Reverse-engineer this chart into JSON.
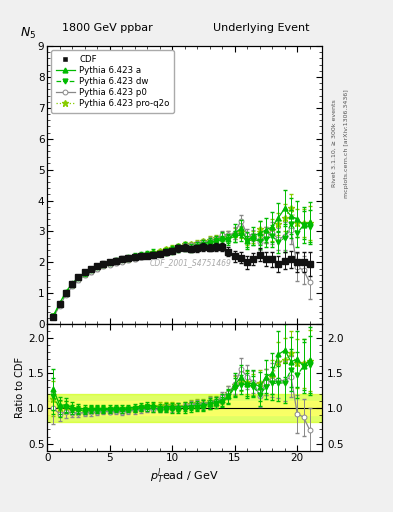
{
  "title_left": "1800 GeV ppbar",
  "title_right": "Underlying Event",
  "watermark": "CDF_2001_S4751469",
  "right_label1": "Rivet 3.1.10, ≥ 300k events",
  "right_label2": "mcplots.cern.ch [arXiv:1306.3436]",
  "cdf_x": [
    0.5,
    1.0,
    1.5,
    2.0,
    2.5,
    3.0,
    3.5,
    4.0,
    4.5,
    5.0,
    5.5,
    6.0,
    6.5,
    7.0,
    7.5,
    8.0,
    8.5,
    9.0,
    9.5,
    10.0,
    10.5,
    11.0,
    11.5,
    12.0,
    12.5,
    13.0,
    13.5,
    14.0,
    14.5,
    15.0,
    15.5,
    16.0,
    16.5,
    17.0,
    17.5,
    18.0,
    18.5,
    19.0,
    19.5,
    20.0,
    20.5,
    21.0
  ],
  "cdf_y": [
    0.22,
    0.65,
    1.0,
    1.3,
    1.52,
    1.68,
    1.78,
    1.88,
    1.96,
    2.02,
    2.06,
    2.12,
    2.15,
    2.18,
    2.2,
    2.22,
    2.25,
    2.28,
    2.32,
    2.38,
    2.45,
    2.48,
    2.42,
    2.45,
    2.5,
    2.48,
    2.5,
    2.5,
    2.35,
    2.2,
    2.15,
    2.0,
    2.1,
    2.25,
    2.1,
    2.1,
    1.95,
    2.05,
    2.1,
    2.0,
    2.0,
    1.95
  ],
  "cdf_yerr": [
    0.04,
    0.06,
    0.07,
    0.07,
    0.07,
    0.07,
    0.07,
    0.07,
    0.07,
    0.07,
    0.07,
    0.07,
    0.07,
    0.08,
    0.08,
    0.08,
    0.08,
    0.08,
    0.09,
    0.09,
    0.1,
    0.1,
    0.1,
    0.1,
    0.12,
    0.12,
    0.12,
    0.12,
    0.15,
    0.18,
    0.18,
    0.2,
    0.2,
    0.22,
    0.22,
    0.25,
    0.25,
    0.28,
    0.28,
    0.32,
    0.32,
    0.38
  ],
  "py_a_x": [
    0.5,
    1.0,
    1.5,
    2.0,
    2.5,
    3.0,
    3.5,
    4.0,
    4.5,
    5.0,
    5.5,
    6.0,
    6.5,
    7.0,
    7.5,
    8.0,
    8.5,
    9.0,
    9.5,
    10.0,
    10.5,
    11.0,
    11.5,
    12.0,
    12.5,
    13.0,
    13.5,
    14.0,
    14.5,
    15.0,
    15.5,
    16.0,
    16.5,
    17.0,
    17.5,
    18.0,
    18.5,
    19.0,
    19.5,
    20.0,
    20.5,
    21.0
  ],
  "py_a_y": [
    0.28,
    0.68,
    1.05,
    1.32,
    1.52,
    1.67,
    1.78,
    1.88,
    1.96,
    2.02,
    2.07,
    2.12,
    2.17,
    2.22,
    2.27,
    2.3,
    2.35,
    2.3,
    2.38,
    2.45,
    2.5,
    2.55,
    2.5,
    2.55,
    2.62,
    2.65,
    2.7,
    2.8,
    2.75,
    2.95,
    3.1,
    2.7,
    2.85,
    2.95,
    3.05,
    3.15,
    3.45,
    3.75,
    3.5,
    3.4,
    3.2,
    3.3
  ],
  "py_a_yerr": [
    0.04,
    0.05,
    0.06,
    0.06,
    0.06,
    0.06,
    0.06,
    0.06,
    0.06,
    0.06,
    0.06,
    0.06,
    0.06,
    0.07,
    0.07,
    0.07,
    0.07,
    0.08,
    0.09,
    0.09,
    0.1,
    0.1,
    0.1,
    0.11,
    0.12,
    0.14,
    0.14,
    0.18,
    0.18,
    0.28,
    0.28,
    0.28,
    0.28,
    0.38,
    0.38,
    0.48,
    0.48,
    0.58,
    0.58,
    0.58,
    0.58,
    0.65
  ],
  "py_dw_x": [
    0.5,
    1.0,
    1.5,
    2.0,
    2.5,
    3.0,
    3.5,
    4.0,
    4.5,
    5.0,
    5.5,
    6.0,
    6.5,
    7.0,
    7.5,
    8.0,
    8.5,
    9.0,
    9.5,
    10.0,
    10.5,
    11.0,
    11.5,
    12.0,
    12.5,
    13.0,
    13.5,
    14.0,
    14.5,
    15.0,
    15.5,
    16.0,
    16.5,
    17.0,
    17.5,
    18.0,
    18.5,
    19.0,
    19.5,
    20.0,
    20.5,
    21.0
  ],
  "py_dw_y": [
    0.26,
    0.65,
    1.02,
    1.28,
    1.48,
    1.63,
    1.75,
    1.85,
    1.93,
    1.98,
    2.03,
    2.08,
    2.12,
    2.17,
    2.22,
    2.25,
    2.25,
    2.25,
    2.3,
    2.35,
    2.4,
    2.45,
    2.42,
    2.5,
    2.55,
    2.62,
    2.68,
    2.72,
    2.75,
    2.85,
    2.88,
    2.68,
    2.75,
    2.68,
    2.75,
    2.85,
    2.65,
    2.8,
    3.25,
    2.95,
    3.2,
    3.15
  ],
  "py_dw_yerr": [
    0.03,
    0.05,
    0.05,
    0.05,
    0.05,
    0.05,
    0.05,
    0.05,
    0.05,
    0.05,
    0.05,
    0.05,
    0.05,
    0.06,
    0.06,
    0.06,
    0.06,
    0.06,
    0.07,
    0.07,
    0.07,
    0.07,
    0.07,
    0.09,
    0.09,
    0.11,
    0.11,
    0.13,
    0.13,
    0.18,
    0.18,
    0.18,
    0.18,
    0.25,
    0.25,
    0.35,
    0.35,
    0.45,
    0.45,
    0.45,
    0.45,
    0.55
  ],
  "py_p0_x": [
    0.5,
    1.0,
    1.5,
    2.0,
    2.5,
    3.0,
    3.5,
    4.0,
    4.5,
    5.0,
    5.5,
    6.0,
    6.5,
    7.0,
    7.5,
    8.0,
    8.5,
    9.0,
    9.5,
    10.0,
    10.5,
    11.0,
    11.5,
    12.0,
    12.5,
    13.0,
    13.5,
    14.0,
    14.5,
    15.0,
    15.5,
    16.0,
    16.5,
    17.0,
    17.5,
    18.0,
    18.5,
    19.0,
    19.5,
    20.0,
    20.5,
    21.0
  ],
  "py_p0_y": [
    0.22,
    0.6,
    0.95,
    1.22,
    1.42,
    1.58,
    1.68,
    1.78,
    1.88,
    1.93,
    1.97,
    2.02,
    2.07,
    2.12,
    2.17,
    2.2,
    2.22,
    2.27,
    2.32,
    2.38,
    2.5,
    2.55,
    2.55,
    2.6,
    2.65,
    2.7,
    2.75,
    2.9,
    2.88,
    2.95,
    3.35,
    2.9,
    2.88,
    2.65,
    2.88,
    2.95,
    2.75,
    2.85,
    3.05,
    1.85,
    1.75,
    1.35
  ],
  "py_p0_yerr": [
    0.03,
    0.04,
    0.05,
    0.05,
    0.05,
    0.05,
    0.05,
    0.05,
    0.05,
    0.05,
    0.05,
    0.05,
    0.05,
    0.06,
    0.06,
    0.06,
    0.06,
    0.06,
    0.07,
    0.07,
    0.07,
    0.07,
    0.07,
    0.09,
    0.09,
    0.11,
    0.11,
    0.13,
    0.13,
    0.18,
    0.18,
    0.18,
    0.18,
    0.25,
    0.25,
    0.35,
    0.35,
    0.45,
    0.45,
    0.45,
    0.45,
    0.55
  ],
  "py_proq2o_x": [
    0.5,
    1.0,
    1.5,
    2.0,
    2.5,
    3.0,
    3.5,
    4.0,
    4.5,
    5.0,
    5.5,
    6.0,
    6.5,
    7.0,
    7.5,
    8.0,
    8.5,
    9.0,
    9.5,
    10.0,
    10.5,
    11.0,
    11.5,
    12.0,
    12.5,
    13.0,
    13.5,
    14.0,
    14.5,
    15.0,
    15.5,
    16.0,
    16.5,
    17.0,
    17.5,
    18.0,
    18.5,
    19.0,
    19.5,
    20.0,
    20.5,
    21.0
  ],
  "py_proq2o_y": [
    0.25,
    0.65,
    1.02,
    1.28,
    1.48,
    1.63,
    1.75,
    1.85,
    1.93,
    1.98,
    2.03,
    2.08,
    2.12,
    2.17,
    2.22,
    2.27,
    2.32,
    2.37,
    2.42,
    2.48,
    2.53,
    2.58,
    2.58,
    2.63,
    2.68,
    2.73,
    2.78,
    2.83,
    2.88,
    2.93,
    2.98,
    2.75,
    2.82,
    3.08,
    2.88,
    3.05,
    3.25,
    3.45,
    3.75,
    3.28,
    3.28,
    3.28
  ],
  "py_proq2o_yerr": [
    0.03,
    0.04,
    0.05,
    0.05,
    0.05,
    0.05,
    0.05,
    0.05,
    0.05,
    0.05,
    0.05,
    0.05,
    0.05,
    0.06,
    0.06,
    0.06,
    0.06,
    0.06,
    0.07,
    0.07,
    0.07,
    0.07,
    0.07,
    0.09,
    0.09,
    0.11,
    0.11,
    0.13,
    0.13,
    0.18,
    0.18,
    0.18,
    0.18,
    0.25,
    0.25,
    0.35,
    0.35,
    0.45,
    0.45,
    0.45,
    0.45,
    0.55
  ],
  "color_cdf": "#111111",
  "color_py_a": "#00bb00",
  "color_py_dw": "#00bb00",
  "color_py_p0": "#888888",
  "color_py_proq2o": "#88cc00",
  "ylim_main": [
    0,
    9
  ],
  "ylim_ratio": [
    0.4,
    2.2
  ],
  "xlim": [
    0,
    22
  ],
  "yticks_main": [
    0,
    1,
    2,
    3,
    4,
    5,
    6,
    7,
    8,
    9
  ],
  "yticks_ratio": [
    0.5,
    1.0,
    1.5,
    2.0
  ]
}
